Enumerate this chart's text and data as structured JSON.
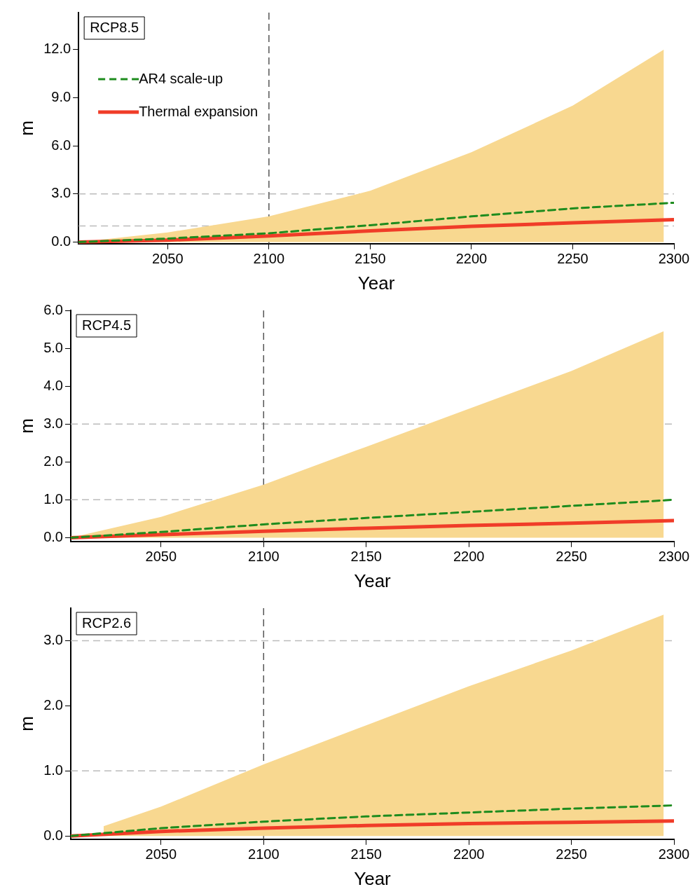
{
  "chart_data": [
    {
      "type": "line",
      "xlabel": "Year",
      "ylabel": "m",
      "annotations": [
        "RCP8.5"
      ],
      "xlim": [
        2006,
        2300
      ],
      "xticks": [
        2050,
        2100,
        2150,
        2200,
        2250,
        2300
      ],
      "ylim": [
        -0.1,
        14.3
      ],
      "yticks": [
        {
          "value": 0,
          "label": "0.0"
        },
        {
          "value": 3,
          "label": "3.0"
        },
        {
          "value": 6,
          "label": "6.0"
        },
        {
          "value": 9,
          "label": "9.0"
        },
        {
          "value": 12,
          "label": "12.0"
        }
      ],
      "grid": false,
      "legend": "top left",
      "marker": "none",
      "ref_lines": [
        {
          "axis": "y",
          "value": 1,
          "color": "#bbbbbb",
          "line_style": "dashed"
        },
        {
          "axis": "y",
          "value": 3,
          "color": "#bbbbbb",
          "line_style": "dashed"
        },
        {
          "axis": "x",
          "value": 2100,
          "color": "#555555",
          "line_style": "dashed"
        }
      ],
      "series": [
        {
          "type": "area",
          "color": "#f8d890",
          "x": [
            2006,
            2050,
            2100,
            2150,
            2200,
            2250,
            2295
          ],
          "values": [
            0,
            0.6,
            1.6,
            3.2,
            5.6,
            8.5,
            12.0
          ]
        },
        {
          "name": "AR4 scale-up",
          "color": "#1e8c1e",
          "line_style": "dashed",
          "x": [
            2006,
            2050,
            2100,
            2150,
            2200,
            2250,
            2300
          ],
          "values": [
            0,
            0.22,
            0.55,
            1.05,
            1.6,
            2.1,
            2.45
          ]
        },
        {
          "name": "Thermal expansion",
          "color": "#f03c28",
          "line_style": "solid",
          "x": [
            2006,
            2050,
            2100,
            2150,
            2200,
            2250,
            2300
          ],
          "values": [
            0,
            0.12,
            0.38,
            0.7,
            0.98,
            1.2,
            1.4
          ]
        }
      ]
    },
    {
      "type": "line",
      "xlabel": "Year",
      "ylabel": "m",
      "annotations": [
        "RCP4.5"
      ],
      "xlim": [
        2006,
        2300
      ],
      "xticks": [
        2050,
        2100,
        2150,
        2200,
        2250,
        2300
      ],
      "ylim": [
        -0.1,
        6
      ],
      "yticks": [
        {
          "value": 0,
          "label": "0.0"
        },
        {
          "value": 1,
          "label": "1.0"
        },
        {
          "value": 2,
          "label": "2.0"
        },
        {
          "value": 3,
          "label": "3.0"
        },
        {
          "value": 4,
          "label": "4.0"
        },
        {
          "value": 5,
          "label": "5.0"
        },
        {
          "value": 6,
          "label": "6.0"
        }
      ],
      "grid": false,
      "marker": "none",
      "ref_lines": [
        {
          "axis": "y",
          "value": 1,
          "color": "#bbbbbb",
          "line_style": "dashed"
        },
        {
          "axis": "y",
          "value": 3,
          "color": "#bbbbbb",
          "line_style": "dashed"
        },
        {
          "axis": "x",
          "value": 2100,
          "color": "#555555",
          "line_style": "dashed"
        }
      ],
      "series": [
        {
          "type": "area",
          "color": "#f8d890",
          "x": [
            2006,
            2050,
            2100,
            2150,
            2200,
            2250,
            2295
          ],
          "values": [
            0,
            0.55,
            1.4,
            2.4,
            3.4,
            4.4,
            5.45
          ]
        },
        {
          "color": "#1e8c1e",
          "line_style": "dashed",
          "x": [
            2006,
            2050,
            2100,
            2150,
            2200,
            2250,
            2300
          ],
          "values": [
            0,
            0.15,
            0.35,
            0.52,
            0.68,
            0.84,
            1.0
          ]
        },
        {
          "color": "#f03c28",
          "line_style": "solid",
          "x": [
            2006,
            2050,
            2100,
            2150,
            2200,
            2250,
            2300
          ],
          "values": [
            0,
            0.08,
            0.17,
            0.25,
            0.32,
            0.38,
            0.45
          ]
        }
      ]
    },
    {
      "type": "line",
      "xlabel": "Year",
      "ylabel": "m",
      "annotations": [
        "RCP2.6"
      ],
      "xlim": [
        2006,
        2300
      ],
      "xticks": [
        2050,
        2100,
        2150,
        2200,
        2250,
        2300
      ],
      "ylim": [
        -0.05,
        3.5
      ],
      "yticks": [
        {
          "value": 0,
          "label": "0.0"
        },
        {
          "value": 1,
          "label": "1.0"
        },
        {
          "value": 2,
          "label": "2.0"
        },
        {
          "value": 3,
          "label": "3.0"
        }
      ],
      "grid": false,
      "marker": "none",
      "ref_lines": [
        {
          "axis": "y",
          "value": 1,
          "color": "#bbbbbb",
          "line_style": "dashed"
        },
        {
          "axis": "y",
          "value": 3,
          "color": "#bbbbbb",
          "line_style": "dashed"
        },
        {
          "axis": "x",
          "value": 2100,
          "color": "#555555",
          "line_style": "dashed"
        }
      ],
      "series": [
        {
          "type": "area",
          "color": "#f8d890",
          "x": [
            2022,
            2050,
            2100,
            2150,
            2200,
            2250,
            2295
          ],
          "values": [
            0.15,
            0.45,
            1.1,
            1.7,
            2.3,
            2.85,
            3.4
          ]
        },
        {
          "color": "#1e8c1e",
          "line_style": "dashed",
          "x": [
            2006,
            2050,
            2100,
            2150,
            2200,
            2250,
            2300
          ],
          "values": [
            0,
            0.12,
            0.22,
            0.3,
            0.36,
            0.42,
            0.47
          ]
        },
        {
          "color": "#f03c28",
          "line_style": "solid",
          "x": [
            2006,
            2050,
            2100,
            2150,
            2200,
            2250,
            2300
          ],
          "values": [
            0,
            0.07,
            0.12,
            0.16,
            0.19,
            0.21,
            0.23
          ]
        }
      ]
    }
  ]
}
